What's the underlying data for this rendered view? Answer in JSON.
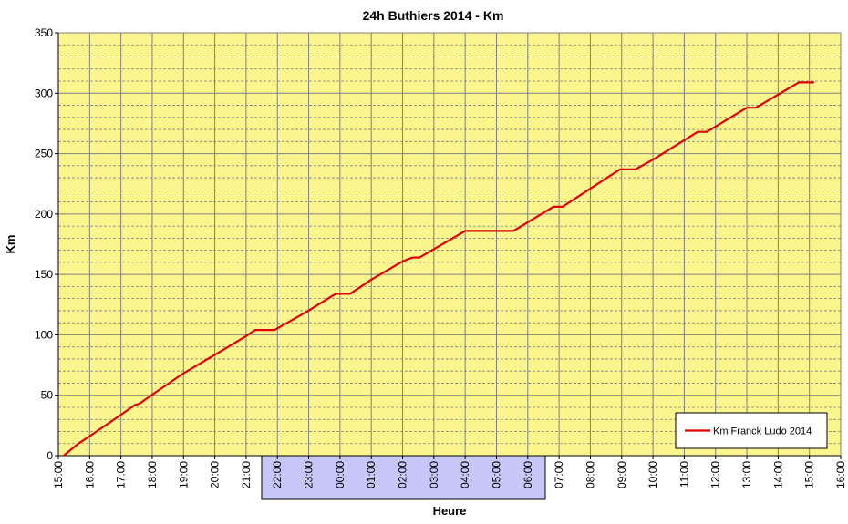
{
  "chart_data": {
    "type": "line",
    "title": "24h Buthiers 2014 - Km",
    "x_label": "Heure",
    "y_label": "Km",
    "xlim": [
      0,
      25
    ],
    "xticks": [
      {
        "value": 0,
        "label": "15:00"
      },
      {
        "value": 1,
        "label": "16:00"
      },
      {
        "value": 2,
        "label": "17:00"
      },
      {
        "value": 3,
        "label": "18:00"
      },
      {
        "value": 4,
        "label": "19:00"
      },
      {
        "value": 5,
        "label": "20:00"
      },
      {
        "value": 6,
        "label": "21:00"
      },
      {
        "value": 7,
        "label": "22:00"
      },
      {
        "value": 8,
        "label": "23:00"
      },
      {
        "value": 9,
        "label": "00:00"
      },
      {
        "value": 10,
        "label": "01:00"
      },
      {
        "value": 11,
        "label": "02:00"
      },
      {
        "value": 12,
        "label": "03:00"
      },
      {
        "value": 13,
        "label": "04:00"
      },
      {
        "value": 14,
        "label": "05:00"
      },
      {
        "value": 15,
        "label": "06:00"
      },
      {
        "value": 16,
        "label": "07:00"
      },
      {
        "value": 17,
        "label": "08:00"
      },
      {
        "value": 18,
        "label": "09:00"
      },
      {
        "value": 19,
        "label": "10:00"
      },
      {
        "value": 20,
        "label": "11:00"
      },
      {
        "value": 21,
        "label": "12:00"
      },
      {
        "value": 22,
        "label": "13:00"
      },
      {
        "value": 23,
        "label": "14:00"
      },
      {
        "value": 24,
        "label": "15:00"
      },
      {
        "value": 25,
        "label": "16:00"
      }
    ],
    "ylim": [
      0,
      350
    ],
    "yticks": [
      0,
      50,
      100,
      150,
      200,
      250,
      300,
      350
    ],
    "grid": true,
    "legend": "lower right",
    "x": [
      0.17,
      0.64,
      1.05,
      2.01,
      2.45,
      2.59,
      3.03,
      3.99,
      4.9,
      5.04,
      6.0,
      6.29,
      6.91,
      7.93,
      8.86,
      9.32,
      10.02,
      11.01,
      11.31,
      11.54,
      13.0,
      14.54,
      15.82,
      16.11,
      17.95,
      18.44,
      19.0,
      20.43,
      20.72,
      22.0,
      22.29,
      23.66,
      24.15
    ],
    "series": [
      {
        "name": "Km Franck Ludo 2014",
        "color": "#e00000",
        "values": [
          0,
          10,
          17,
          34,
          42,
          43,
          51,
          68,
          82,
          84,
          99,
          104,
          104,
          119,
          134,
          134,
          146,
          161,
          164,
          164,
          186,
          186,
          206,
          206,
          237,
          237,
          245,
          268,
          268,
          288,
          288,
          309,
          309
        ]
      }
    ]
  }
}
